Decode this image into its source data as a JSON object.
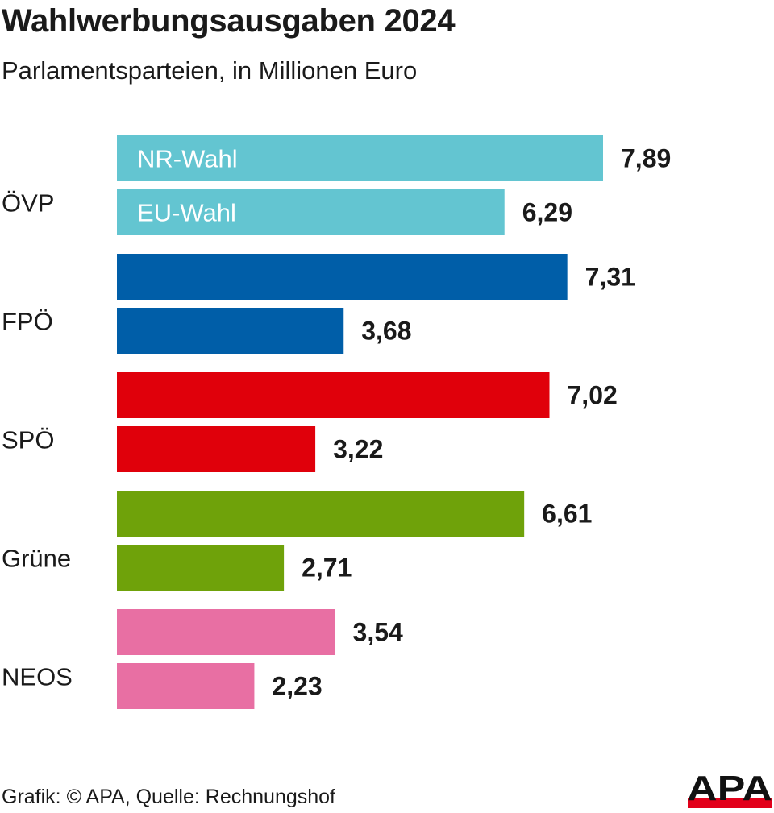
{
  "chart_data": {
    "type": "bar",
    "orientation": "horizontal",
    "title": "Wahlwerbungsausgaben 2024",
    "subtitle": "Parlamentsparteien, in Millionen Euro",
    "categories": [
      "ÖVP",
      "FPÖ",
      "SPÖ",
      "Grüne",
      "NEOS"
    ],
    "category_colors": [
      "#63c5d1",
      "#005ea8",
      "#e0000b",
      "#6fa20a",
      "#e86fa3"
    ],
    "series": [
      {
        "name": "NR-Wahl",
        "values": [
          7.89,
          7.31,
          7.02,
          6.61,
          3.54
        ],
        "labels": [
          "7,89",
          "7,31",
          "7,02",
          "6,61",
          "3,54"
        ]
      },
      {
        "name": "EU-Wahl",
        "values": [
          6.29,
          3.68,
          3.22,
          2.71,
          2.23
        ],
        "labels": [
          "6,29",
          "3,68",
          "3,22",
          "2,71",
          "2,23"
        ]
      }
    ],
    "xlim": [
      0,
      7.89
    ],
    "grid": false,
    "legend": "inside first bars"
  },
  "source": "Grafik: © APA, Quelle: Rechnungshof",
  "logo_text": "APA"
}
